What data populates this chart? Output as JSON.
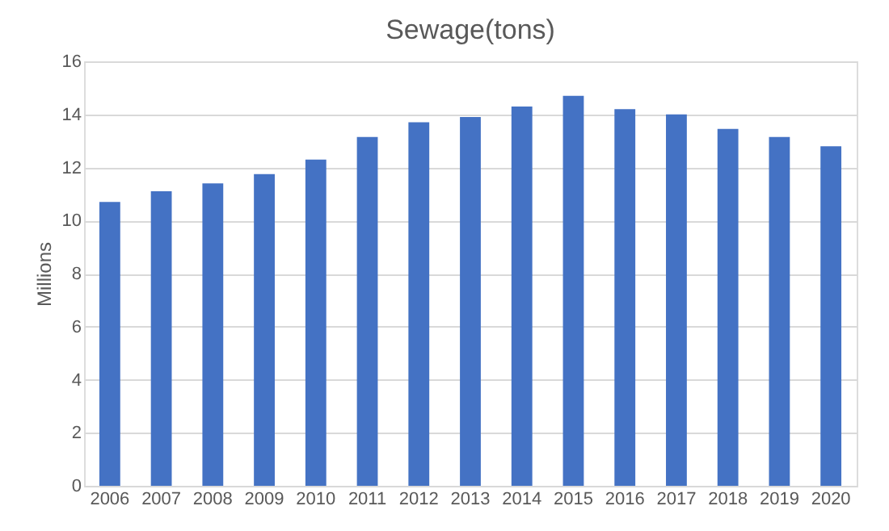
{
  "chart_data": {
    "type": "bar",
    "title": "Sewage(tons)",
    "ylabel": "Millions",
    "categories": [
      "2006",
      "2007",
      "2008",
      "2009",
      "2010",
      "2011",
      "2012",
      "2013",
      "2014",
      "2015",
      "2016",
      "2017",
      "2018",
      "2019",
      "2020"
    ],
    "values": [
      10.7,
      11.1,
      11.4,
      11.75,
      12.3,
      13.15,
      13.7,
      13.9,
      14.3,
      14.7,
      14.2,
      14.0,
      13.45,
      13.15,
      12.8
    ],
    "color": "#4472c4",
    "ylim": [
      0,
      16
    ],
    "yticks": [
      0,
      2,
      4,
      6,
      8,
      10,
      12,
      14,
      16
    ],
    "grid": "y"
  }
}
